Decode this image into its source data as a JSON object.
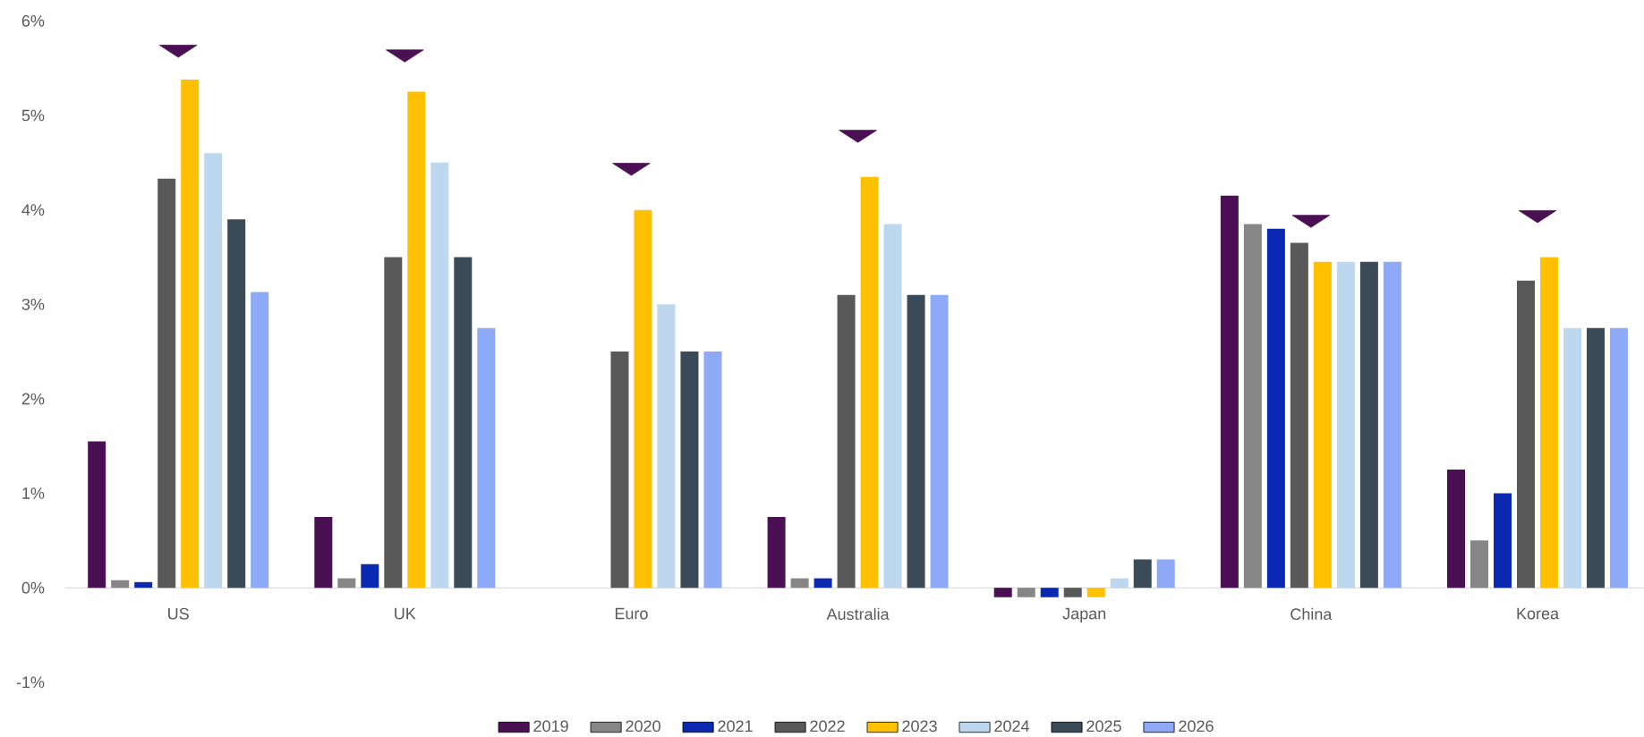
{
  "chart_data": {
    "type": "bar",
    "categories": [
      "US",
      "UK",
      "Euro",
      "Australia",
      "Japan",
      "China",
      "Korea"
    ],
    "ylim": [
      -1,
      6
    ],
    "yticks": [
      {
        "value": -1,
        "label": "-1%"
      },
      {
        "value": 0,
        "label": "0%"
      },
      {
        "value": 1,
        "label": "1%"
      },
      {
        "value": 2,
        "label": "2%"
      },
      {
        "value": 3,
        "label": "3%"
      },
      {
        "value": 4,
        "label": "4%"
      },
      {
        "value": 5,
        "label": "5%"
      },
      {
        "value": 6,
        "label": "6%"
      }
    ],
    "legend": "bottom",
    "series": [
      {
        "name": "2019",
        "color": "#4b1053",
        "values": [
          1.55,
          0.75,
          null,
          0.75,
          -0.1,
          4.15,
          1.25
        ]
      },
      {
        "name": "2020",
        "color": "#868686",
        "values": [
          0.08,
          0.1,
          null,
          0.1,
          -0.1,
          3.85,
          0.5
        ]
      },
      {
        "name": "2021",
        "color": "#0a29b0",
        "values": [
          0.06,
          0.25,
          null,
          0.1,
          -0.1,
          3.8,
          1.0
        ]
      },
      {
        "name": "2022",
        "color": "#595959",
        "values": [
          4.33,
          3.5,
          2.5,
          3.1,
          -0.1,
          3.65,
          3.25
        ]
      },
      {
        "name": "2023",
        "color": "#ffc000",
        "values": [
          5.38,
          5.25,
          4.0,
          4.35,
          -0.1,
          3.45,
          3.5
        ]
      },
      {
        "name": "2024",
        "color": "#bdd7ee",
        "values": [
          4.6,
          4.5,
          3.0,
          3.85,
          0.1,
          3.45,
          2.75
        ]
      },
      {
        "name": "2025",
        "color": "#3a4a56",
        "values": [
          3.9,
          3.5,
          2.5,
          3.1,
          0.3,
          3.45,
          2.75
        ]
      },
      {
        "name": "2026",
        "color": "#8ea9f5",
        "values": [
          3.13,
          2.75,
          2.5,
          3.1,
          0.3,
          3.45,
          2.75
        ]
      },
      {
        "type": "scatter",
        "marker": "triangle",
        "color": "#4b1053",
        "values": [
          5.7,
          5.65,
          4.45,
          4.8,
          null,
          3.9,
          3.95
        ]
      }
    ]
  }
}
